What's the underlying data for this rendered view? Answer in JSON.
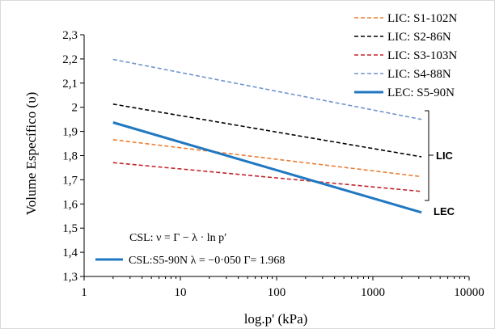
{
  "chart_data": {
    "type": "line",
    "xscale": "log",
    "xlim": [
      1,
      10000
    ],
    "ylim": [
      1.3,
      2.3
    ],
    "xticks": [
      "1",
      "10",
      "100",
      "1000",
      "10000"
    ],
    "yticks": [
      "1,3",
      "1,4",
      "1,5",
      "1,6",
      "1,7",
      "1,8",
      "1,9",
      "2",
      "2,1",
      "2,2",
      "2,3"
    ],
    "xlabel": "log.p' (kPa)",
    "ylabel": "Volume Específico (υ)",
    "grid": false,
    "legend_position": "top-right",
    "series": [
      {
        "name": "LIC: S1-102N",
        "color": "#ED7D31",
        "style": "dashed",
        "x": [
          2,
          3200
        ],
        "y": [
          1.866,
          1.713
        ]
      },
      {
        "name": "LIC: S2-86N",
        "color": "#000000",
        "style": "dashed",
        "x": [
          2,
          3200
        ],
        "y": [
          2.013,
          1.795
        ]
      },
      {
        "name": "LIC: S3-103N",
        "color": "#C0262D",
        "style": "dashed",
        "x": [
          2,
          3200
        ],
        "y": [
          1.771,
          1.652
        ]
      },
      {
        "name": "LIC: S4-88N",
        "color": "#7094CD",
        "style": "dashed",
        "x": [
          2,
          3200
        ],
        "y": [
          2.198,
          1.95
        ]
      },
      {
        "name": "LEC: S5-90N",
        "color": "#1F78C1",
        "style": "solid",
        "x": [
          2,
          3200
        ],
        "y": [
          1.937,
          1.565
        ]
      }
    ],
    "annotations": {
      "bracket_label": "LIC",
      "lec_label": "LEC",
      "csl_equation": "CSL: ν = Γ − λ · ln p′",
      "csl_fit_label": "CSL:S5-90N λ = −0·050 Γ= 1.968"
    }
  }
}
